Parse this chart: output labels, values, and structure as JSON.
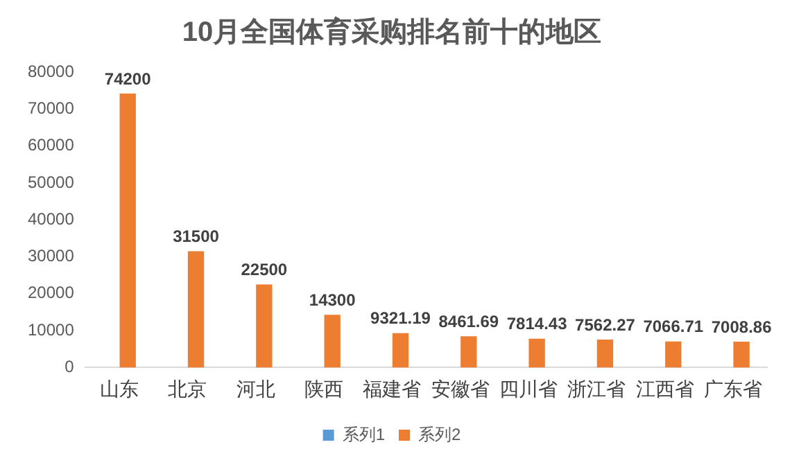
{
  "chart_data": {
    "type": "bar",
    "title": "10月全国体育采购排名前十的地区",
    "categories": [
      "山东",
      "北京",
      "河北",
      "陕西",
      "福建省",
      "安徽省",
      "四川省",
      "浙江省",
      "江西省",
      "广东省"
    ],
    "series": [
      {
        "name": "系列1",
        "color": "#5b9bd5",
        "values": [
          null,
          null,
          null,
          null,
          null,
          null,
          null,
          null,
          null,
          null
        ]
      },
      {
        "name": "系列2",
        "color": "#ed7d31",
        "values": [
          74200,
          31500,
          22500,
          14300,
          9321.19,
          8461.69,
          7814.43,
          7562.27,
          7066.71,
          7008.86
        ]
      }
    ],
    "ylim": [
      0,
      80000
    ],
    "yticks": [
      0,
      10000,
      20000,
      30000,
      40000,
      50000,
      60000,
      70000,
      80000
    ],
    "data_labels": true,
    "legend": "bottom"
  }
}
